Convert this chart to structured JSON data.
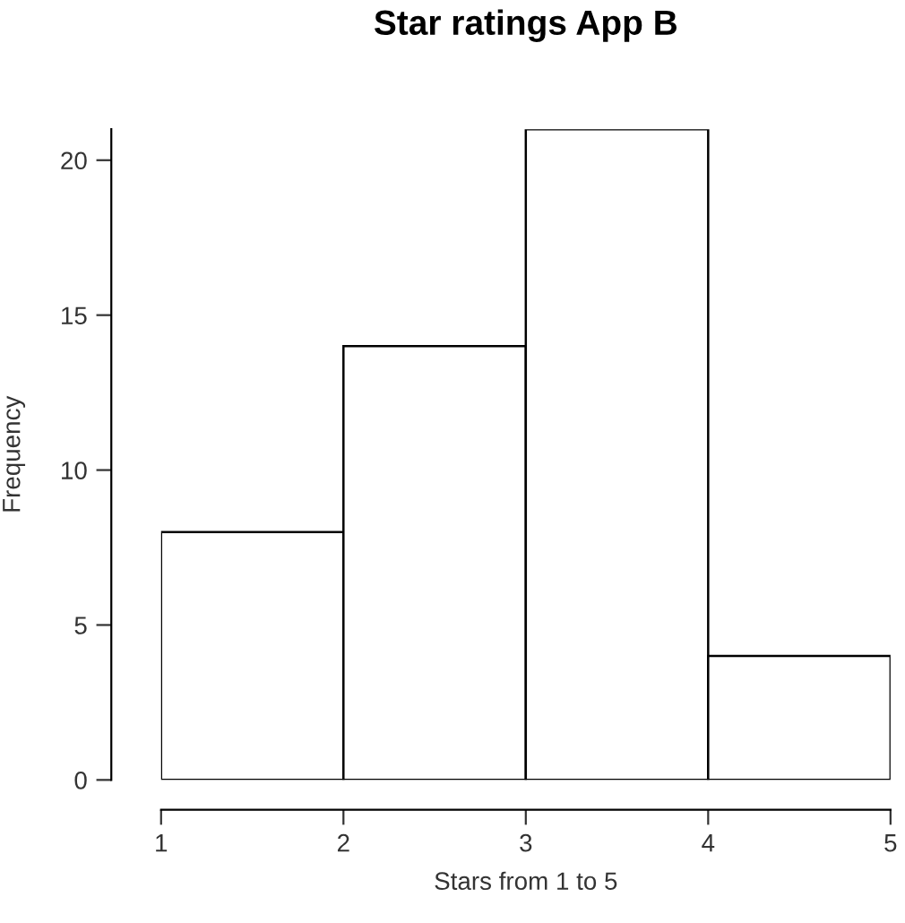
{
  "chart_data": {
    "type": "histogram",
    "title": "Star ratings App B",
    "xlabel": "Stars from 1 to 5",
    "ylabel": "Frequency",
    "bins": [
      1,
      2,
      3,
      4,
      5
    ],
    "values": [
      8,
      14,
      21,
      4
    ],
    "color": "#ffffff",
    "xlim": [
      1,
      5
    ],
    "ylim": [
      0,
      21
    ],
    "xticks": [
      1,
      2,
      3,
      4,
      5
    ],
    "yticks": [
      0,
      5,
      10,
      15,
      20
    ],
    "grid": false,
    "legend": false
  }
}
